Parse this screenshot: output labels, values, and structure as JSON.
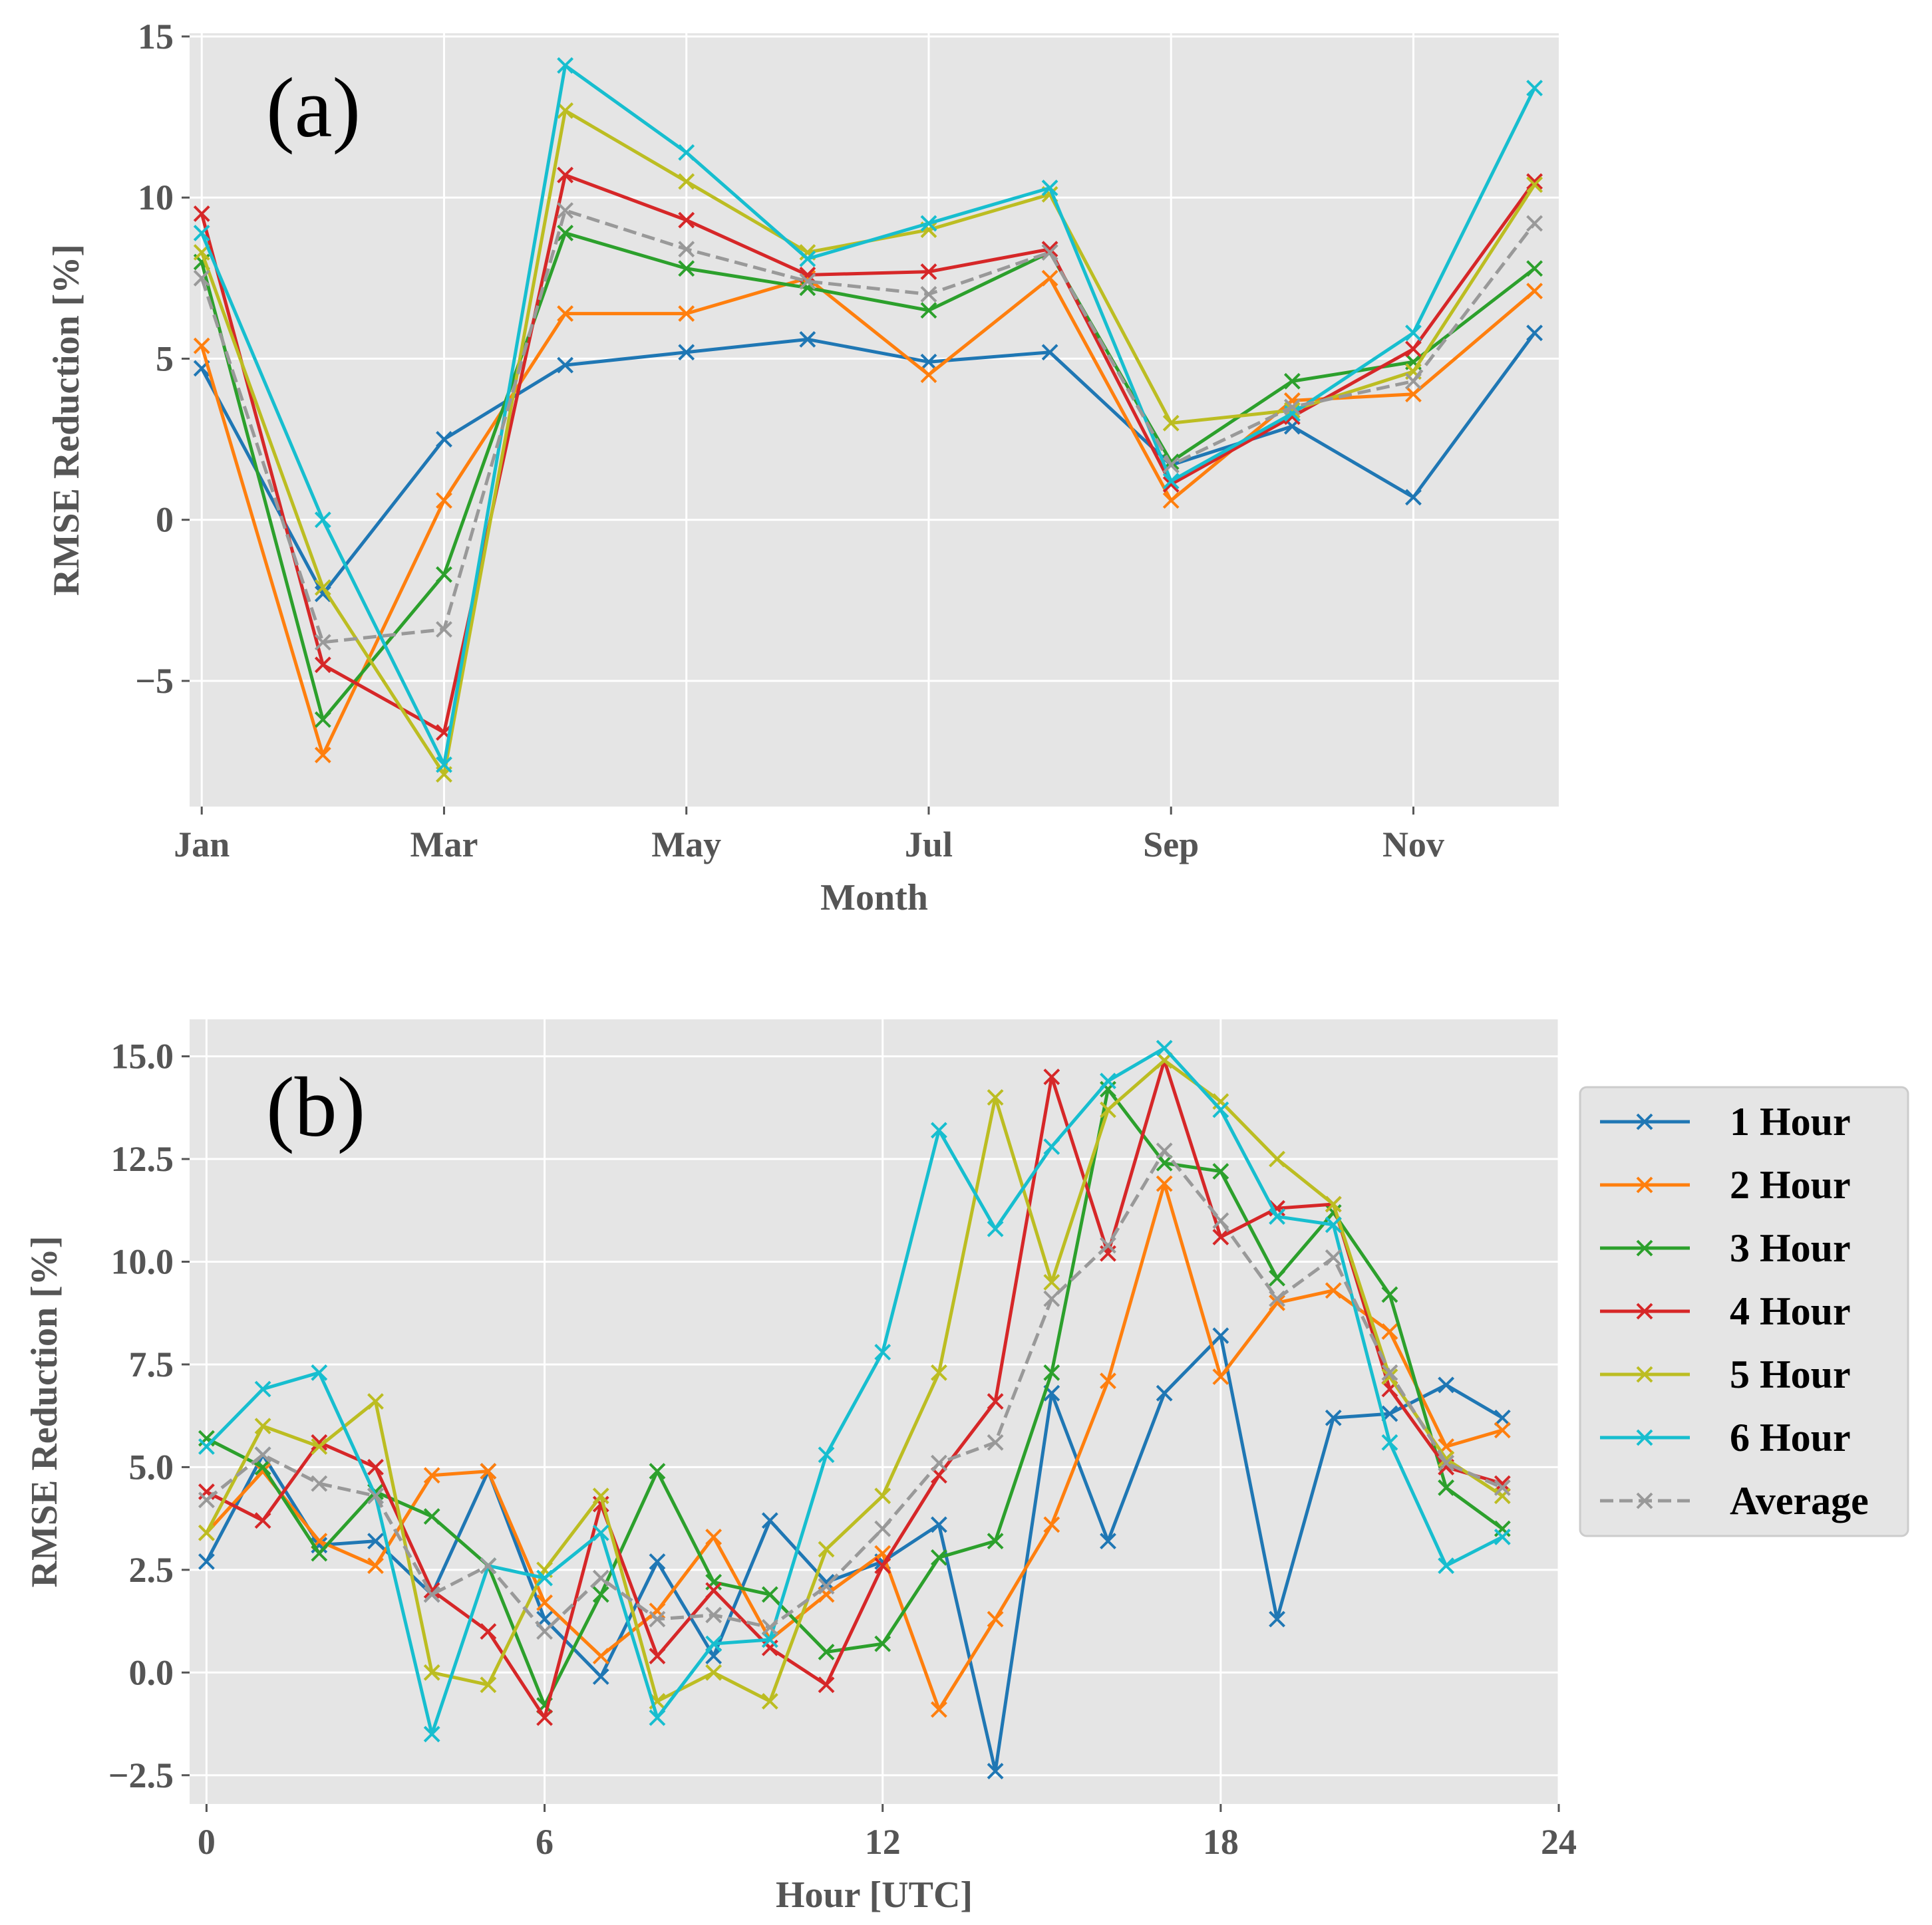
{
  "chart_data": [
    {
      "type": "line",
      "panel_label": "(a)",
      "xlabel": "Month",
      "ylabel": "RMSE Reduction [%]",
      "x": [
        1,
        2,
        3,
        4,
        5,
        6,
        7,
        8,
        9,
        10,
        11,
        12
      ],
      "xlim": [
        0.9,
        12.2
      ],
      "ylim": [
        -8.9,
        15.1
      ],
      "xticks": [
        1,
        3,
        5,
        7,
        9,
        11
      ],
      "xtick_labels": [
        "Jan",
        "Mar",
        "May",
        "Jul",
        "Sep",
        "Nov"
      ],
      "yticks": [
        -5,
        0,
        5,
        10,
        15
      ],
      "ytick_labels": [
        "−5",
        "0",
        "5",
        "10",
        "15"
      ],
      "grid": true,
      "series": [
        {
          "name": "1 Hour",
          "color": "#1f77b4",
          "dashed": false,
          "values": [
            4.7,
            -2.3,
            2.5,
            4.8,
            5.2,
            5.6,
            4.9,
            5.2,
            1.7,
            2.9,
            0.7,
            5.8
          ]
        },
        {
          "name": "2 Hour",
          "color": "#ff7f0e",
          "dashed": false,
          "values": [
            5.4,
            -7.3,
            0.6,
            6.4,
            6.4,
            7.5,
            4.5,
            7.5,
            0.6,
            3.7,
            3.9,
            7.1
          ]
        },
        {
          "name": "3 Hour",
          "color": "#2ca02c",
          "dashed": false,
          "values": [
            8.0,
            -6.2,
            -1.7,
            8.9,
            7.8,
            7.2,
            6.5,
            8.3,
            1.8,
            4.3,
            4.9,
            7.8
          ]
        },
        {
          "name": "4 Hour",
          "color": "#d62728",
          "dashed": false,
          "values": [
            9.5,
            -4.5,
            -6.6,
            10.7,
            9.3,
            7.6,
            7.7,
            8.4,
            1.1,
            3.2,
            5.3,
            10.5
          ]
        },
        {
          "name": "5 Hour",
          "color": "#bcbd22",
          "dashed": false,
          "values": [
            8.3,
            -2.1,
            -7.9,
            12.7,
            10.5,
            8.3,
            9.0,
            10.1,
            3.0,
            3.4,
            4.6,
            10.4
          ]
        },
        {
          "name": "6 Hour",
          "color": "#17becf",
          "dashed": false,
          "values": [
            8.9,
            0.0,
            -7.6,
            14.1,
            11.4,
            8.1,
            9.2,
            10.3,
            1.2,
            3.3,
            5.8,
            13.4
          ]
        },
        {
          "name": "Average",
          "color": "#999999",
          "dashed": true,
          "values": [
            7.5,
            -3.8,
            -3.4,
            9.6,
            8.4,
            7.4,
            7.0,
            8.3,
            1.7,
            3.5,
            4.3,
            9.2
          ]
        }
      ]
    },
    {
      "type": "line",
      "panel_label": "(b)",
      "xlabel": "Hour [UTC]",
      "ylabel": "RMSE Reduction [%]",
      "x": [
        0,
        1,
        2,
        3,
        4,
        5,
        6,
        7,
        8,
        9,
        10,
        11,
        12,
        13,
        14,
        15,
        16,
        17,
        18,
        19,
        20,
        21,
        22,
        23
      ],
      "xlim": [
        -0.3,
        24
      ],
      "ylim": [
        -3.2,
        15.9
      ],
      "xticks": [
        0,
        6,
        12,
        18,
        24
      ],
      "xtick_labels": [
        "0",
        "6",
        "12",
        "18",
        "24"
      ],
      "yticks": [
        -2.5,
        0.0,
        2.5,
        5.0,
        7.5,
        10.0,
        12.5,
        15.0
      ],
      "ytick_labels": [
        "−2.5",
        "0.0",
        "2.5",
        "5.0",
        "7.5",
        "10.0",
        "12.5",
        "15.0"
      ],
      "grid": true,
      "legend_position": "outside-right",
      "series": [
        {
          "name": "1 Hour",
          "color": "#1f77b4",
          "dashed": false,
          "values": [
            2.7,
            5.3,
            3.1,
            3.2,
            1.9,
            4.9,
            1.3,
            -0.1,
            2.7,
            0.4,
            3.7,
            2.2,
            2.7,
            3.6,
            -2.4,
            6.8,
            3.2,
            6.8,
            8.2,
            1.3,
            6.2,
            6.3,
            7.0,
            6.2
          ]
        },
        {
          "name": "2 Hour",
          "color": "#ff7f0e",
          "dashed": false,
          "values": [
            3.4,
            4.9,
            3.2,
            2.6,
            4.8,
            4.9,
            1.7,
            0.4,
            1.5,
            3.3,
            0.8,
            1.9,
            2.9,
            -0.9,
            1.3,
            3.6,
            7.1,
            11.9,
            7.2,
            9.0,
            9.3,
            8.3,
            5.5,
            5.9
          ]
        },
        {
          "name": "3 Hour",
          "color": "#2ca02c",
          "dashed": false,
          "values": [
            5.7,
            5.0,
            2.9,
            4.4,
            3.8,
            2.6,
            -0.8,
            1.9,
            4.9,
            2.2,
            1.9,
            0.5,
            0.7,
            2.8,
            3.2,
            7.3,
            14.2,
            12.4,
            12.2,
            9.6,
            11.2,
            9.2,
            4.5,
            3.5
          ]
        },
        {
          "name": "4 Hour",
          "color": "#d62728",
          "dashed": false,
          "values": [
            4.4,
            3.7,
            5.6,
            5.0,
            2.0,
            1.0,
            -1.1,
            4.1,
            0.4,
            2.0,
            0.6,
            -0.3,
            2.6,
            4.8,
            6.6,
            14.5,
            10.2,
            14.9,
            10.6,
            11.3,
            11.4,
            6.9,
            5.0,
            4.6
          ]
        },
        {
          "name": "5 Hour",
          "color": "#bcbd22",
          "dashed": false,
          "values": [
            3.4,
            6.0,
            5.5,
            6.6,
            0.0,
            -0.3,
            2.5,
            4.3,
            -0.7,
            0.0,
            -0.7,
            3.0,
            4.3,
            7.3,
            14.0,
            9.5,
            13.7,
            14.9,
            13.9,
            12.5,
            11.4,
            7.2,
            5.2,
            4.3
          ]
        },
        {
          "name": "6 Hour",
          "color": "#17becf",
          "dashed": false,
          "values": [
            5.5,
            6.9,
            7.3,
            4.3,
            -1.5,
            2.6,
            2.3,
            3.4,
            -1.1,
            0.7,
            0.8,
            5.3,
            7.8,
            13.2,
            10.8,
            12.8,
            14.4,
            15.2,
            13.7,
            11.1,
            10.9,
            5.6,
            2.6,
            3.3
          ]
        },
        {
          "name": "Average",
          "color": "#999999",
          "dashed": true,
          "values": [
            4.2,
            5.3,
            4.6,
            4.3,
            1.9,
            2.6,
            1.0,
            2.3,
            1.3,
            1.4,
            1.1,
            2.1,
            3.5,
            5.1,
            5.6,
            9.1,
            10.4,
            12.7,
            11.0,
            9.1,
            10.1,
            7.3,
            5.1,
            4.5
          ]
        }
      ]
    }
  ]
}
